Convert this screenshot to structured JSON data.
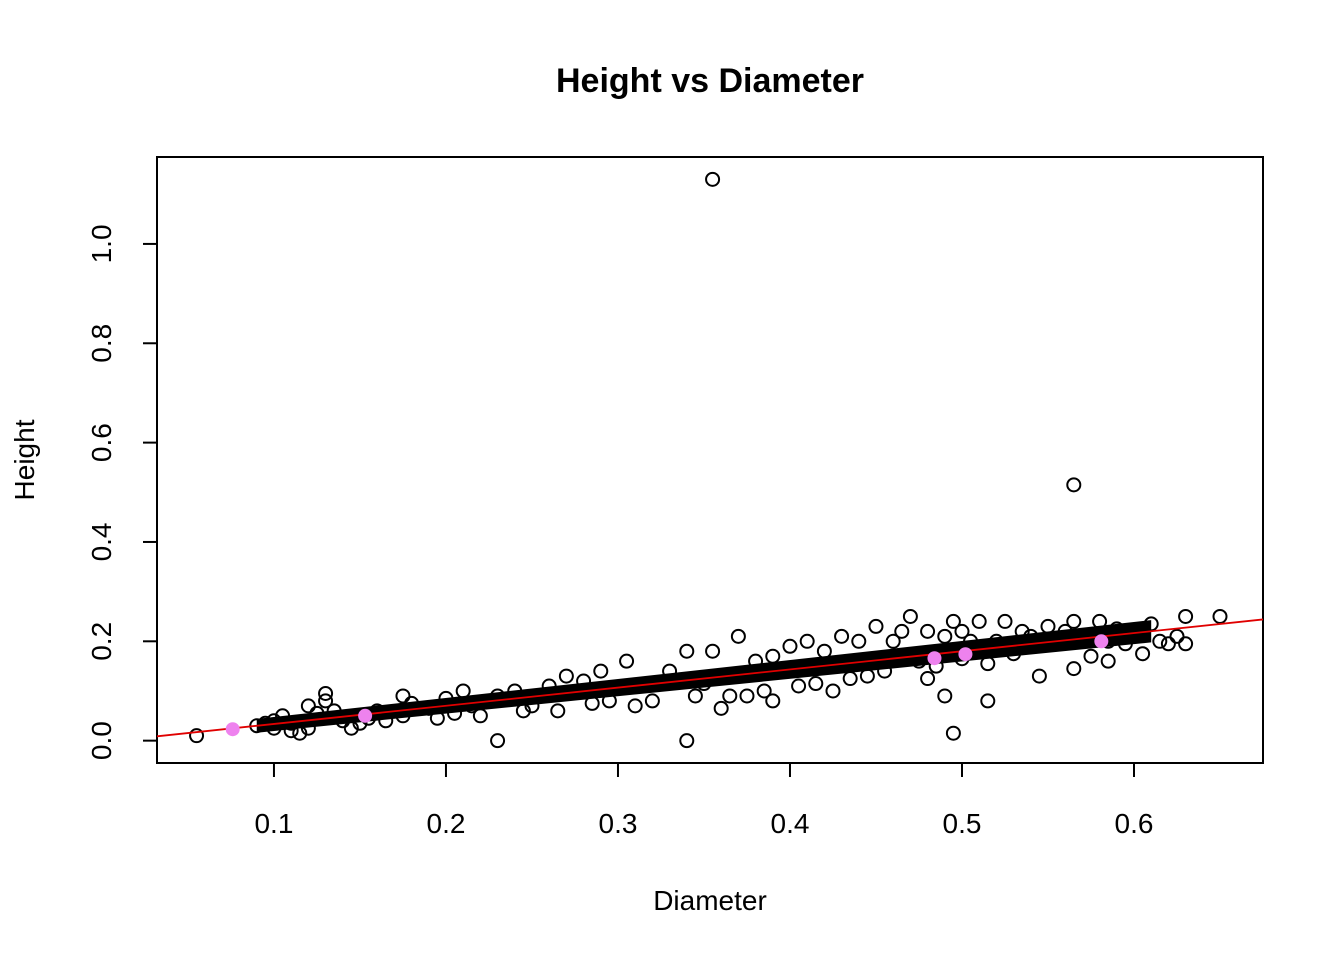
{
  "chart_data": {
    "type": "scatter",
    "title": "Height vs Diameter",
    "xlabel": "Diameter",
    "ylabel": "Height",
    "xlim": [
      0.032,
      0.675
    ],
    "ylim": [
      -0.045,
      1.175
    ],
    "x_ticks": [
      0.1,
      0.2,
      0.3,
      0.4,
      0.5,
      0.6
    ],
    "y_ticks": [
      0.0,
      0.2,
      0.4,
      0.6,
      0.8,
      1.0
    ],
    "x_tick_labels": [
      "0.1",
      "0.2",
      "0.3",
      "0.4",
      "0.5",
      "0.6"
    ],
    "y_tick_labels": [
      "0.0",
      "0.2",
      "0.4",
      "0.6",
      "0.8",
      "1.0"
    ],
    "grid": false,
    "legend": "none",
    "colors": {
      "points": "#000000",
      "fit_line": "#e00000",
      "highlight": "#ee82ee"
    },
    "trend_band": {
      "x_start": 0.09,
      "x_end": 0.61,
      "slope": 0.366,
      "intercept": -0.003,
      "spread": 0.014
    },
    "fit_line": {
      "slope": 0.366,
      "intercept": -0.003
    },
    "series": [
      {
        "values": [
          [
            0.055,
            0.01
          ],
          [
            0.09,
            0.03
          ],
          [
            0.095,
            0.035
          ],
          [
            0.1,
            0.025
          ],
          [
            0.1,
            0.04
          ],
          [
            0.105,
            0.05
          ],
          [
            0.11,
            0.02
          ],
          [
            0.11,
            0.035
          ],
          [
            0.115,
            0.015
          ],
          [
            0.12,
            0.025
          ],
          [
            0.12,
            0.07
          ],
          [
            0.125,
            0.055
          ],
          [
            0.13,
            0.095
          ],
          [
            0.13,
            0.08
          ],
          [
            0.135,
            0.06
          ],
          [
            0.14,
            0.04
          ],
          [
            0.145,
            0.025
          ],
          [
            0.15,
            0.035
          ],
          [
            0.155,
            0.045
          ],
          [
            0.16,
            0.06
          ],
          [
            0.165,
            0.04
          ],
          [
            0.175,
            0.09
          ],
          [
            0.175,
            0.05
          ],
          [
            0.18,
            0.075
          ],
          [
            0.19,
            0.065
          ],
          [
            0.195,
            0.045
          ],
          [
            0.2,
            0.085
          ],
          [
            0.205,
            0.055
          ],
          [
            0.21,
            0.1
          ],
          [
            0.215,
            0.07
          ],
          [
            0.22,
            0.05
          ],
          [
            0.23,
            0.0
          ],
          [
            0.23,
            0.09
          ],
          [
            0.24,
            0.1
          ],
          [
            0.245,
            0.06
          ],
          [
            0.25,
            0.07
          ],
          [
            0.26,
            0.11
          ],
          [
            0.265,
            0.06
          ],
          [
            0.27,
            0.13
          ],
          [
            0.28,
            0.12
          ],
          [
            0.285,
            0.075
          ],
          [
            0.29,
            0.14
          ],
          [
            0.295,
            0.08
          ],
          [
            0.305,
            0.16
          ],
          [
            0.31,
            0.07
          ],
          [
            0.32,
            0.08
          ],
          [
            0.325,
            0.115
          ],
          [
            0.33,
            0.14
          ],
          [
            0.34,
            0.0
          ],
          [
            0.34,
            0.18
          ],
          [
            0.345,
            0.09
          ],
          [
            0.35,
            0.115
          ],
          [
            0.355,
            1.13
          ],
          [
            0.355,
            0.18
          ],
          [
            0.36,
            0.065
          ],
          [
            0.365,
            0.09
          ],
          [
            0.37,
            0.21
          ],
          [
            0.375,
            0.09
          ],
          [
            0.38,
            0.16
          ],
          [
            0.385,
            0.1
          ],
          [
            0.39,
            0.17
          ],
          [
            0.39,
            0.08
          ],
          [
            0.4,
            0.19
          ],
          [
            0.405,
            0.11
          ],
          [
            0.41,
            0.2
          ],
          [
            0.415,
            0.115
          ],
          [
            0.42,
            0.18
          ],
          [
            0.425,
            0.1
          ],
          [
            0.43,
            0.21
          ],
          [
            0.435,
            0.125
          ],
          [
            0.44,
            0.2
          ],
          [
            0.445,
            0.13
          ],
          [
            0.45,
            0.23
          ],
          [
            0.455,
            0.14
          ],
          [
            0.46,
            0.2
          ],
          [
            0.465,
            0.22
          ],
          [
            0.47,
            0.25
          ],
          [
            0.475,
            0.16
          ],
          [
            0.48,
            0.22
          ],
          [
            0.48,
            0.125
          ],
          [
            0.485,
            0.15
          ],
          [
            0.49,
            0.09
          ],
          [
            0.49,
            0.21
          ],
          [
            0.495,
            0.24
          ],
          [
            0.495,
            0.015
          ],
          [
            0.5,
            0.165
          ],
          [
            0.5,
            0.22
          ],
          [
            0.505,
            0.2
          ],
          [
            0.51,
            0.24
          ],
          [
            0.515,
            0.155
          ],
          [
            0.515,
            0.08
          ],
          [
            0.52,
            0.2
          ],
          [
            0.525,
            0.24
          ],
          [
            0.53,
            0.175
          ],
          [
            0.535,
            0.22
          ],
          [
            0.54,
            0.21
          ],
          [
            0.545,
            0.13
          ],
          [
            0.55,
            0.23
          ],
          [
            0.555,
            0.2
          ],
          [
            0.56,
            0.22
          ],
          [
            0.565,
            0.515
          ],
          [
            0.565,
            0.24
          ],
          [
            0.565,
            0.145
          ],
          [
            0.57,
            0.21
          ],
          [
            0.575,
            0.17
          ],
          [
            0.58,
            0.24
          ],
          [
            0.585,
            0.16
          ],
          [
            0.585,
            0.2
          ],
          [
            0.59,
            0.225
          ],
          [
            0.595,
            0.195
          ],
          [
            0.6,
            0.21
          ],
          [
            0.605,
            0.175
          ],
          [
            0.61,
            0.235
          ],
          [
            0.615,
            0.2
          ],
          [
            0.62,
            0.195
          ],
          [
            0.625,
            0.21
          ],
          [
            0.63,
            0.25
          ],
          [
            0.63,
            0.195
          ],
          [
            0.65,
            0.25
          ]
        ]
      }
    ],
    "highlight_points": [
      [
        0.076,
        0.023
      ],
      [
        0.153,
        0.05
      ],
      [
        0.484,
        0.166
      ],
      [
        0.502,
        0.174
      ],
      [
        0.581,
        0.2
      ]
    ]
  }
}
